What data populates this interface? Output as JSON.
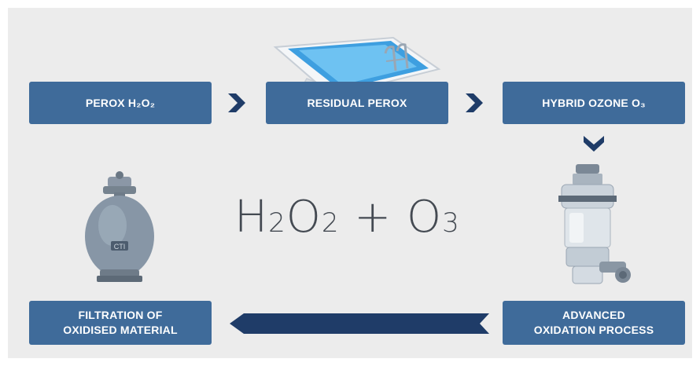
{
  "steps": {
    "perox": {
      "label": "PEROX H₂O₂"
    },
    "residual": {
      "label": "RESIDUAL PEROX"
    },
    "hybrid": {
      "label": "HYBRID OZONE O₃"
    },
    "advanced": {
      "line1": "ADVANCED",
      "line2": "OXIDATION PROCESS"
    },
    "filtration": {
      "line1": "FILTRATION OF",
      "line2": "OXIDISED MATERIAL"
    }
  },
  "formula": {
    "h": "H",
    "sub2a": "2",
    "o": "O",
    "sub2b": "2",
    "plus": " + ",
    "o3": "O",
    "sub3": "3"
  },
  "colors": {
    "box": "#3f6b9a",
    "arrow": "#1f3c68",
    "background": "#ececec",
    "formula": "#444a52"
  },
  "icons": [
    "swimming-pool-icon",
    "sand-filter-icon",
    "ozone-unit-icon",
    "chevron-right-icon",
    "chevron-down-icon",
    "long-arrow-left-icon"
  ]
}
